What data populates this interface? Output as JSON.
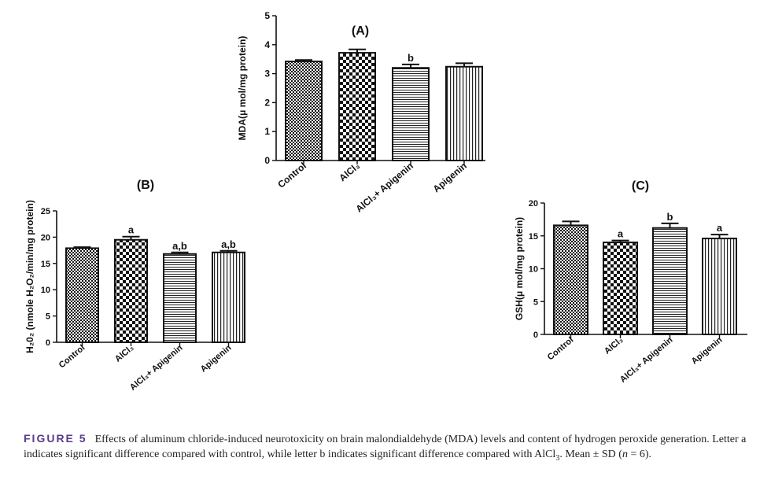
{
  "chart_data": [
    {
      "id": "A",
      "type": "bar",
      "title": "(A)",
      "ylabel": "MDA(μ mol/mg protein)",
      "ylim": [
        0,
        5
      ],
      "yticks": [
        0,
        1,
        2,
        3,
        4,
        5
      ],
      "categories": [
        "Control",
        "AlCl₃",
        "AlCl₃+ Apigenin",
        "Apigenin"
      ],
      "values": [
        3.42,
        3.72,
        3.2,
        3.24
      ],
      "errors": [
        0.05,
        0.12,
        0.12,
        0.12
      ],
      "annotations": [
        "",
        "",
        "b",
        ""
      ],
      "patterns": [
        "dense-check",
        "check",
        "hstripe",
        "vstripe"
      ]
    },
    {
      "id": "B",
      "type": "bar",
      "title": "(B)",
      "ylabel": "H₂0₂ (nmole H₂O₂/min/mg protein)",
      "ylim": [
        0,
        25
      ],
      "yticks": [
        0,
        5,
        10,
        15,
        20,
        25
      ],
      "categories": [
        "Control",
        "AlCl₃",
        "AlCl₃+ Apigenin",
        "Apigenin"
      ],
      "values": [
        17.9,
        19.5,
        16.8,
        17.1
      ],
      "errors": [
        0.2,
        0.6,
        0.3,
        0.3
      ],
      "annotations": [
        "",
        "a",
        "a,b",
        "a,b"
      ],
      "patterns": [
        "dense-check",
        "check",
        "hstripe",
        "vstripe"
      ]
    },
    {
      "id": "C",
      "type": "bar",
      "title": "(C)",
      "ylabel": "GSH(μ mol/mg protein)",
      "ylim": [
        0,
        20
      ],
      "yticks": [
        0,
        5,
        10,
        15,
        20
      ],
      "categories": [
        "Control",
        "AlCl₃",
        "AlCl₃+ Apigenin",
        "Apigenin"
      ],
      "values": [
        16.6,
        14.0,
        16.2,
        14.6
      ],
      "errors": [
        0.6,
        0.3,
        0.7,
        0.6
      ],
      "annotations": [
        "",
        "a",
        "b",
        "a"
      ],
      "patterns": [
        "dense-check",
        "check",
        "hstripe",
        "vstripe"
      ]
    }
  ],
  "caption": {
    "label": "FIGURE 5",
    "text_1": "Effects of aluminum chloride-induced neurotoxicity on brain malondialdehyde (MDA) levels and content of hydrogen peroxide generation. Letter a indicates significant difference compared with control, while letter b indicates significant difference compared with AlCl",
    "sub_1": "3",
    "text_2": ". Mean ± SD (",
    "n_var": "n",
    "text_3": " = 6)."
  }
}
